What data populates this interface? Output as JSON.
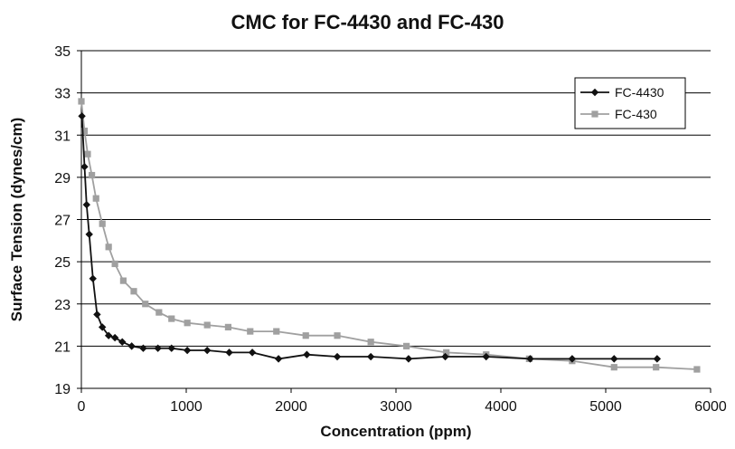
{
  "chart_data": {
    "type": "line",
    "title": "CMC for FC-4430 and FC-430",
    "xlabel": "Concentration (ppm)",
    "ylabel": "Surface Tension (dynes/cm)",
    "xlim": [
      0,
      6000
    ],
    "ylim": [
      19,
      35
    ],
    "x_ticks": [
      0,
      1000,
      2000,
      3000,
      4000,
      5000,
      6000
    ],
    "y_ticks": [
      19,
      21,
      23,
      25,
      27,
      29,
      31,
      33,
      35
    ],
    "grid": "horizontal",
    "legend_position": "top-right",
    "series": [
      {
        "name": "FC-4430",
        "color": "#111111",
        "marker": "diamond",
        "x": [
          5,
          30,
          50,
          75,
          110,
          150,
          200,
          260,
          320,
          390,
          480,
          590,
          730,
          860,
          1010,
          1200,
          1410,
          1630,
          1880,
          2150,
          2440,
          2760,
          3120,
          3470,
          3860,
          4280,
          4680,
          5080,
          5490
        ],
        "y": [
          31.9,
          29.5,
          27.7,
          26.3,
          24.2,
          22.5,
          21.9,
          21.5,
          21.4,
          21.2,
          21.0,
          20.9,
          20.9,
          20.9,
          20.8,
          20.8,
          20.7,
          20.7,
          20.4,
          20.6,
          20.5,
          20.5,
          20.4,
          20.5,
          20.5,
          20.4,
          20.4,
          20.4,
          20.4
        ]
      },
      {
        "name": "FC-430",
        "color": "#a0a0a0",
        "marker": "square",
        "x": [
          0,
          30,
          60,
          100,
          140,
          200,
          260,
          320,
          400,
          500,
          610,
          740,
          860,
          1010,
          1200,
          1400,
          1610,
          1860,
          2140,
          2440,
          2760,
          3100,
          3480,
          3860,
          4270,
          4680,
          5080,
          5480,
          5870
        ],
        "y": [
          32.6,
          31.2,
          30.1,
          29.1,
          28.0,
          26.8,
          25.7,
          24.9,
          24.1,
          23.6,
          23.0,
          22.6,
          22.3,
          22.1,
          22.0,
          21.9,
          21.7,
          21.7,
          21.5,
          21.5,
          21.2,
          21.0,
          20.7,
          20.6,
          20.4,
          20.3,
          20.0,
          20.0,
          19.9
        ]
      }
    ]
  }
}
